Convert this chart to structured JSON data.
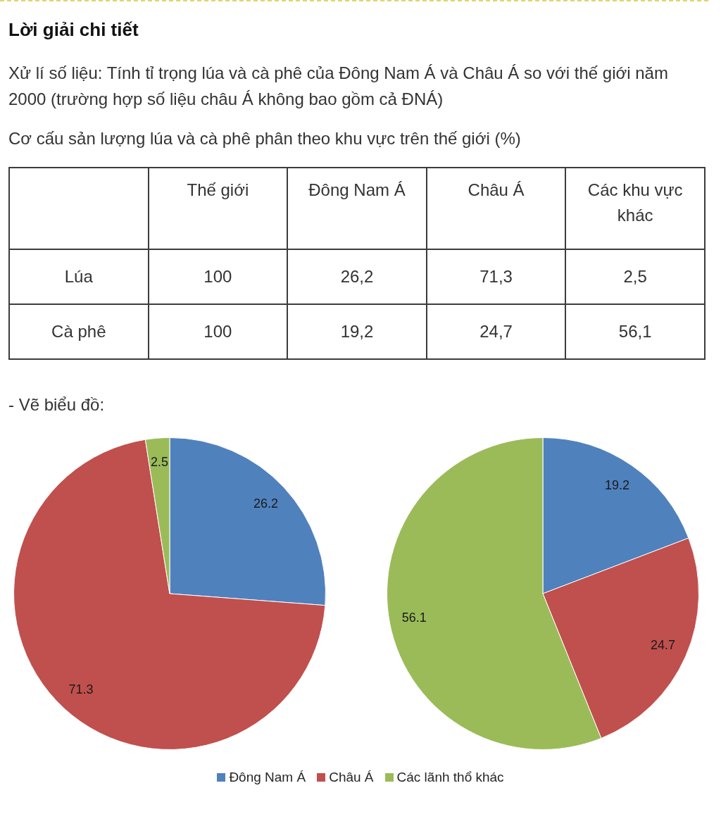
{
  "chart_data": [
    {
      "type": "other",
      "title": "Lời giải chi tiết",
      "subtitle": "Xử lí số liệu: Tính tỉ trọng lúa và cà phê của Đông Nam Á và Châu Á so với thế giới năm 2000 (trường hợp số liệu châu Á không bao gồm cả ĐNÁ)",
      "annotations": [
        "Cơ cấu sản lượng lúa và cà phê phân theo khu vực trên thế giới (%)"
      ],
      "categories": [
        "Thế giới",
        "Đông Nam Á",
        "Châu Á",
        "Các khu vực khác"
      ],
      "series": [
        {
          "name": "Lúa",
          "values": [
            100,
            26.2,
            71.3,
            2.5
          ],
          "value_labels": [
            "100",
            "26,2",
            "71,3",
            "2,5"
          ]
        },
        {
          "name": "Cà phê",
          "values": [
            100,
            19.2,
            24.7,
            56.1
          ],
          "value_labels": [
            "100",
            "19,2",
            "24,7",
            "56,1"
          ]
        }
      ]
    },
    {
      "type": "pie",
      "title": "- Vẽ biểu đồ:",
      "categories": [
        "Đông Nam Á",
        "Châu Á",
        "Các lãnh thổ khác"
      ],
      "colors": [
        "#4f81bd",
        "#c0504d",
        "#9bbb59"
      ],
      "series": [
        {
          "values": [
            26.2,
            71.3,
            2.5
          ]
        },
        {
          "values": [
            19.2,
            24.7,
            56.1
          ]
        }
      ],
      "data_labels": true,
      "legend": "bottom"
    }
  ]
}
